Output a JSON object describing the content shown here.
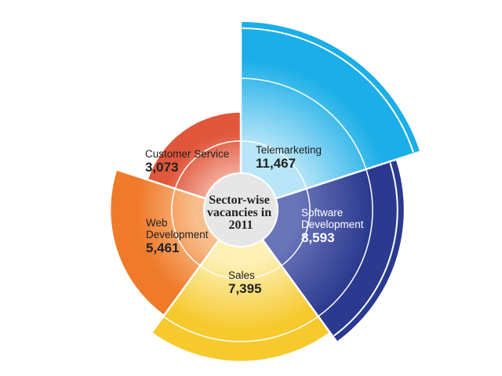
{
  "chart_data": {
    "type": "polar-area",
    "title": [
      "Sector-wise",
      "vacancies in",
      "2011"
    ],
    "series": [
      {
        "name": "Telemarketing",
        "label_lines": [
          "Telemarketing"
        ],
        "value": "11,467",
        "amount": 11467,
        "color": "#1baee8",
        "color_inner": "#b8e6f8",
        "text_color": "#222222"
      },
      {
        "name": "Software Development",
        "label_lines": [
          "Software",
          "Development"
        ],
        "value": "8,593",
        "amount": 8593,
        "color": "#2b3a8f",
        "color_inner": "#6a74b9",
        "text_color": "#ffffff"
      },
      {
        "name": "Sales",
        "label_lines": [
          "Sales"
        ],
        "value": "7,395",
        "amount": 7395,
        "color": "#f6c92d",
        "color_inner": "#fdf1b8",
        "text_color": "#222222"
      },
      {
        "name": "Web Development",
        "label_lines": [
          "Web",
          "Development"
        ],
        "value": "5,461",
        "amount": 5461,
        "color": "#ef7a2a",
        "color_inner": "#f8bf8e",
        "text_color": "#222222"
      },
      {
        "name": "Customer Service",
        "label_lines": [
          "Customer Service"
        ],
        "value": "3,073",
        "amount": 3073,
        "color": "#e0573c",
        "color_inner": "#f3b0a0",
        "text_color": "#222222"
      }
    ]
  }
}
